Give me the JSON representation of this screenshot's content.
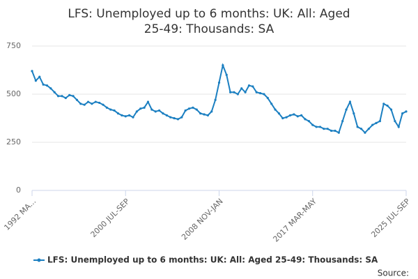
{
  "chart_data": {
    "type": "line",
    "title": "LFS: Unemployed up to 6 months: UK: All: Aged 25-49: Thousands: SA",
    "categories": [
      "1992 MA...",
      null,
      null,
      null,
      null,
      null,
      null,
      null,
      null,
      null,
      null,
      null,
      null,
      null,
      null,
      null,
      null,
      null,
      null,
      null,
      null,
      null,
      null,
      null,
      null,
      "2000 JUL-SEP",
      null,
      null,
      null,
      null,
      null,
      null,
      null,
      null,
      null,
      null,
      null,
      null,
      null,
      null,
      null,
      null,
      null,
      null,
      null,
      null,
      null,
      null,
      null,
      null,
      "2008 NOV-JAN",
      null,
      null,
      null,
      null,
      null,
      null,
      null,
      null,
      null,
      null,
      null,
      null,
      null,
      null,
      null,
      null,
      null,
      null,
      null,
      null,
      null,
      null,
      null,
      null,
      "2017 MAR-MAY",
      null,
      null,
      null,
      null,
      null,
      null,
      null,
      null,
      null,
      null,
      null,
      null,
      null,
      null,
      null,
      null,
      null,
      null,
      null,
      null,
      null,
      null,
      null,
      null,
      "2025 JUL-SEP"
    ],
    "series": [
      {
        "name": "LFS: Unemployed up to 6 months: UK: All: Aged 25-49: Thousands: SA",
        "color": "#1b7fc1",
        "values": [
          620,
          570,
          590,
          550,
          545,
          530,
          510,
          490,
          490,
          480,
          495,
          490,
          470,
          450,
          445,
          460,
          450,
          460,
          455,
          445,
          430,
          420,
          415,
          400,
          390,
          385,
          390,
          380,
          410,
          425,
          430,
          460,
          420,
          410,
          415,
          400,
          390,
          380,
          375,
          370,
          380,
          415,
          425,
          430,
          420,
          400,
          395,
          390,
          410,
          470,
          560,
          650,
          600,
          510,
          510,
          500,
          530,
          510,
          545,
          540,
          510,
          505,
          500,
          480,
          450,
          420,
          400,
          375,
          380,
          390,
          395,
          385,
          390,
          370,
          360,
          340,
          330,
          330,
          320,
          320,
          310,
          310,
          300,
          360,
          420,
          460,
          400,
          330,
          320,
          300,
          320,
          340,
          350,
          360,
          450,
          440,
          420,
          360,
          330,
          400,
          410
        ]
      }
    ],
    "ylim": [
      0,
      750
    ],
    "yticks": [
      0,
      250,
      500,
      750
    ],
    "grid": true,
    "source": "Source:"
  }
}
